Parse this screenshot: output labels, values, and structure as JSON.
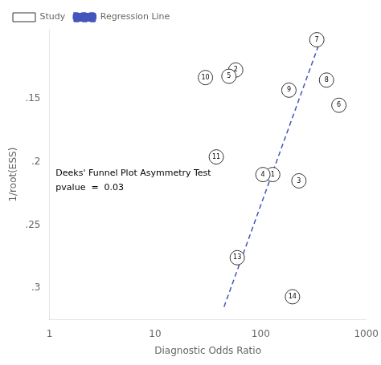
{
  "chart_data": {
    "type": "scatter",
    "title": "Deeks' Funnel Plot Asymmetry Test",
    "subtitle": "pvalue  =  0.03",
    "xlabel": "Diagnostic Odds Ratio",
    "ylabel": "1/root(ESS)",
    "series": [
      {
        "name": "Study",
        "type": "scatter",
        "marker": "circle",
        "color": "#333333",
        "labels": [
          "1",
          "2",
          "3",
          "4",
          "5",
          "6",
          "7",
          "8",
          "9",
          "10",
          "11",
          "13",
          "14"
        ],
        "x": [
          130,
          58,
          230,
          105,
          50,
          550,
          340,
          420,
          185,
          30,
          38,
          60,
          200
        ],
        "values": [
          0.21,
          0.127,
          0.215,
          0.21,
          0.132,
          0.155,
          0.103,
          0.135,
          0.143,
          0.133,
          0.196,
          0.276,
          0.307
        ]
      },
      {
        "name": "Regression\nLine",
        "type": "line",
        "line_style": "dashed",
        "color": "#4455bb",
        "x": [
          45,
          380
        ],
        "values": [
          0.315,
          0.1
        ]
      }
    ],
    "log": "x",
    "xlim": [
      1,
      1000
    ],
    "xticks": [
      1,
      10,
      100,
      1000
    ],
    "ylim": [
      0.325,
      0.095
    ],
    "yticks": [
      {
        "value": 0.15,
        "label": ".15"
      },
      {
        "value": 0.2,
        "label": ".2"
      },
      {
        "value": 0.25,
        "label": ".25"
      },
      {
        "value": 0.3,
        "label": ".3"
      }
    ],
    "grid": false,
    "legend": "upper left"
  }
}
